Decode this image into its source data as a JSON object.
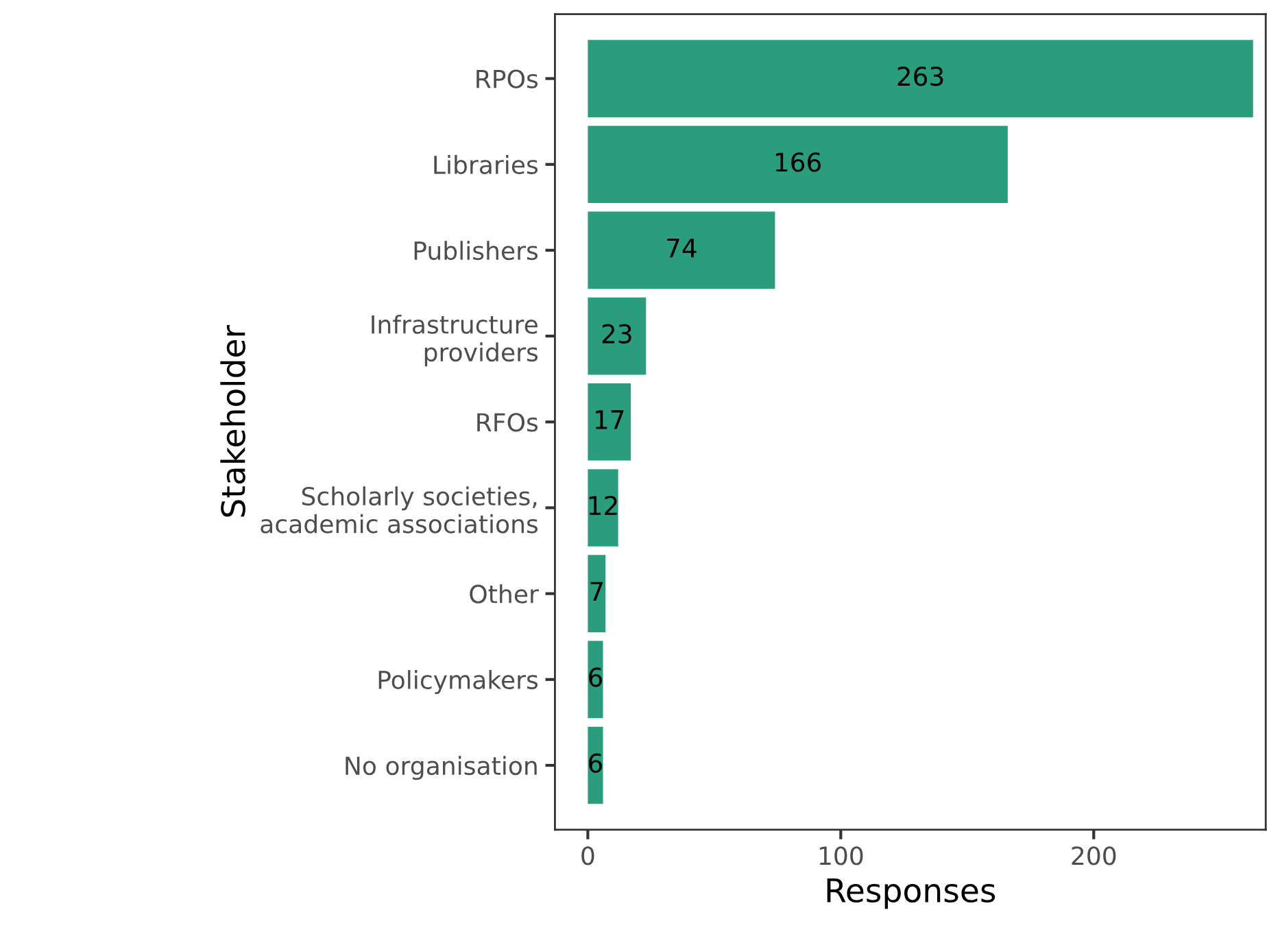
{
  "chart_data": {
    "type": "bar",
    "orientation": "horizontal",
    "xlabel": "Responses",
    "ylabel": "Stakeholder",
    "categories": [
      "RPOs",
      "Libraries",
      "Publishers",
      "Infrastructure\nproviders",
      "RFOs",
      "Scholarly societies,\nacademic associations",
      "Other",
      "Policymakers",
      "No organisation"
    ],
    "values": [
      263,
      166,
      74,
      23,
      17,
      12,
      7,
      6,
      6
    ],
    "color": "#2a9d7c",
    "data_labels": true,
    "grid": false,
    "legend": false,
    "xlim": [
      -13,
      268
    ],
    "xticks": [
      0,
      100,
      200
    ]
  }
}
